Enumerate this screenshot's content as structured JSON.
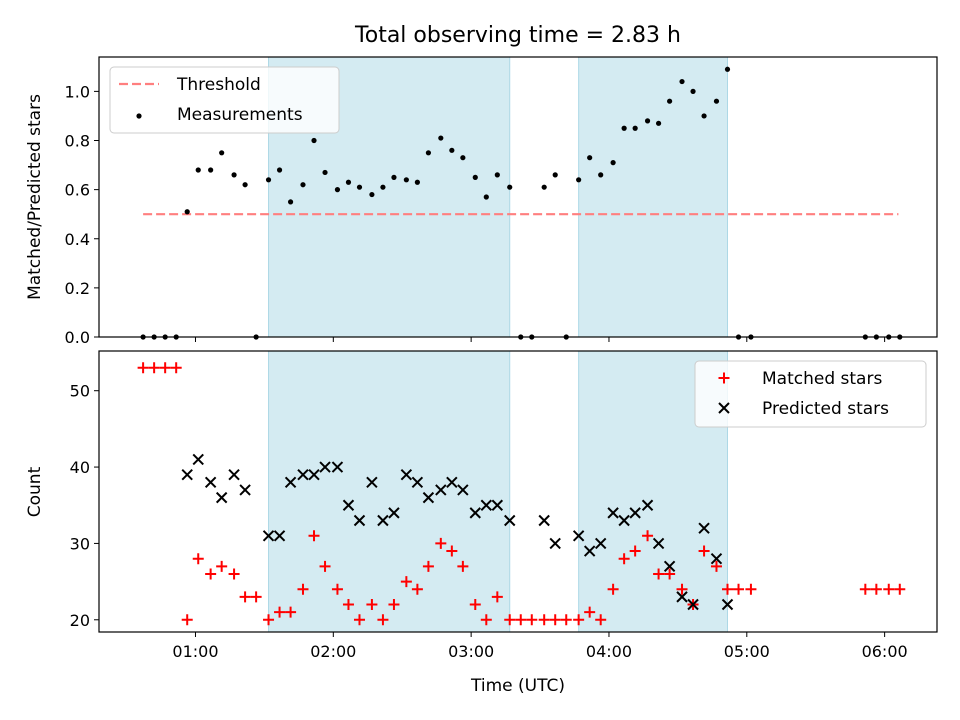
{
  "figure": {
    "title": "Total observing time = 2.83 h",
    "xlabel": "Time (UTC)"
  },
  "colors": {
    "shade": "#add8e6",
    "threshold": "#ff7f7f",
    "measurement": "#000000",
    "matched": "#ff0000",
    "predicted": "#000000"
  },
  "chart_data": [
    {
      "type": "scatter",
      "panel": "top",
      "xlabel": "",
      "ylabel": "Matched/Predicted stars",
      "xticks": [
        "01:00",
        "02:00",
        "03:00",
        "04:00",
        "05:00",
        "06:00"
      ],
      "yticks": [
        "0.0",
        "0.2",
        "0.4",
        "0.6",
        "0.8",
        "1.0"
      ],
      "xlim_hours": [
        0.3,
        6.38
      ],
      "ylim": [
        0,
        1.14
      ],
      "grid": false,
      "legend_position": "upper-left",
      "shaded_intervals_hours": [
        [
          1.53,
          3.28
        ],
        [
          3.78,
          4.86
        ]
      ],
      "threshold": {
        "name": "Threshold",
        "value": 0.5,
        "x_range_hours": [
          0.62,
          6.1
        ],
        "style": "dashed"
      },
      "series": [
        {
          "name": "Measurements",
          "marker": "dot",
          "x_hours": [
            0.62,
            0.7,
            0.78,
            0.86,
            0.94,
            1.02,
            1.11,
            1.19,
            1.28,
            1.36,
            1.44,
            1.53,
            1.61,
            1.69,
            1.78,
            1.86,
            1.94,
            2.03,
            2.11,
            2.19,
            2.28,
            2.36,
            2.44,
            2.53,
            2.61,
            2.69,
            2.78,
            2.86,
            2.94,
            3.03,
            3.11,
            3.19,
            3.28,
            3.36,
            3.44,
            3.53,
            3.61,
            3.69,
            3.78,
            3.86,
            3.94,
            4.03,
            4.11,
            4.19,
            4.28,
            4.36,
            4.44,
            4.53,
            4.61,
            4.69,
            4.78,
            4.86,
            4.94,
            5.03,
            5.86,
            5.94,
            6.03,
            6.11
          ],
          "y": [
            0,
            0,
            0,
            0,
            0.51,
            0.68,
            0.68,
            0.75,
            0.66,
            0.62,
            0,
            0.64,
            0.68,
            0.55,
            0.62,
            0.8,
            0.67,
            0.6,
            0.63,
            0.61,
            0.58,
            0.61,
            0.65,
            0.64,
            0.63,
            0.75,
            0.81,
            0.76,
            0.73,
            0.65,
            0.57,
            0.66,
            0.61,
            0,
            0,
            0.61,
            0.66,
            0,
            0.64,
            0.73,
            0.66,
            0.71,
            0.85,
            0.85,
            0.88,
            0.87,
            0.96,
            1.04,
            1.0,
            0.9,
            0.96,
            1.09,
            0,
            0,
            0,
            0,
            0,
            0
          ]
        }
      ]
    },
    {
      "type": "scatter",
      "panel": "bottom",
      "xlabel": "Time (UTC)",
      "ylabel": "Count",
      "xticks": [
        "01:00",
        "02:00",
        "03:00",
        "04:00",
        "05:00",
        "06:00"
      ],
      "yticks": [
        "20",
        "30",
        "40",
        "50"
      ],
      "xlim_hours": [
        0.3,
        6.38
      ],
      "ylim": [
        18.4,
        55.2
      ],
      "grid": false,
      "legend_position": "upper-right",
      "shaded_intervals_hours": [
        [
          1.53,
          3.28
        ],
        [
          3.78,
          4.86
        ]
      ],
      "series": [
        {
          "name": "Matched stars",
          "marker": "plus",
          "x_hours": [
            0.62,
            0.7,
            0.78,
            0.86,
            0.94,
            1.02,
            1.11,
            1.19,
            1.28,
            1.36,
            1.44,
            1.53,
            1.61,
            1.69,
            1.78,
            1.86,
            1.94,
            2.03,
            2.11,
            2.19,
            2.28,
            2.36,
            2.44,
            2.53,
            2.61,
            2.69,
            2.78,
            2.86,
            2.94,
            3.03,
            3.11,
            3.19,
            3.28,
            3.36,
            3.44,
            3.53,
            3.61,
            3.69,
            3.78,
            3.86,
            3.94,
            4.03,
            4.11,
            4.19,
            4.28,
            4.36,
            4.44,
            4.53,
            4.61,
            4.69,
            4.78,
            4.86,
            4.94,
            5.03,
            5.86,
            5.94,
            6.03,
            6.11
          ],
          "y": [
            53,
            53,
            53,
            53,
            20,
            28,
            26,
            27,
            26,
            23,
            23,
            20,
            21,
            21,
            24,
            31,
            27,
            24,
            22,
            20,
            22,
            20,
            22,
            25,
            24,
            27,
            30,
            29,
            27,
            22,
            20,
            23,
            20,
            20,
            20,
            20,
            20,
            20,
            20,
            21,
            20,
            24,
            28,
            29,
            31,
            26,
            26,
            24,
            22,
            29,
            27,
            24,
            24,
            24,
            24,
            24,
            24,
            24
          ]
        },
        {
          "name": "Predicted stars",
          "marker": "x",
          "x_hours": [
            0.94,
            1.02,
            1.11,
            1.19,
            1.28,
            1.36,
            1.53,
            1.61,
            1.69,
            1.78,
            1.86,
            1.94,
            2.03,
            2.11,
            2.19,
            2.28,
            2.36,
            2.44,
            2.53,
            2.61,
            2.69,
            2.78,
            2.86,
            2.94,
            3.03,
            3.11,
            3.19,
            3.28,
            3.53,
            3.61,
            3.78,
            3.86,
            3.94,
            4.03,
            4.11,
            4.19,
            4.28,
            4.36,
            4.44,
            4.53,
            4.61,
            4.69,
            4.78,
            4.86
          ],
          "y": [
            39,
            41,
            38,
            36,
            39,
            37,
            31,
            31,
            38,
            39,
            39,
            40,
            40,
            35,
            33,
            38,
            33,
            34,
            39,
            38,
            36,
            37,
            38,
            37,
            34,
            35,
            35,
            33,
            33,
            30,
            31,
            29,
            30,
            34,
            33,
            34,
            35,
            30,
            27,
            23,
            22,
            32,
            28,
            22
          ]
        }
      ]
    }
  ]
}
